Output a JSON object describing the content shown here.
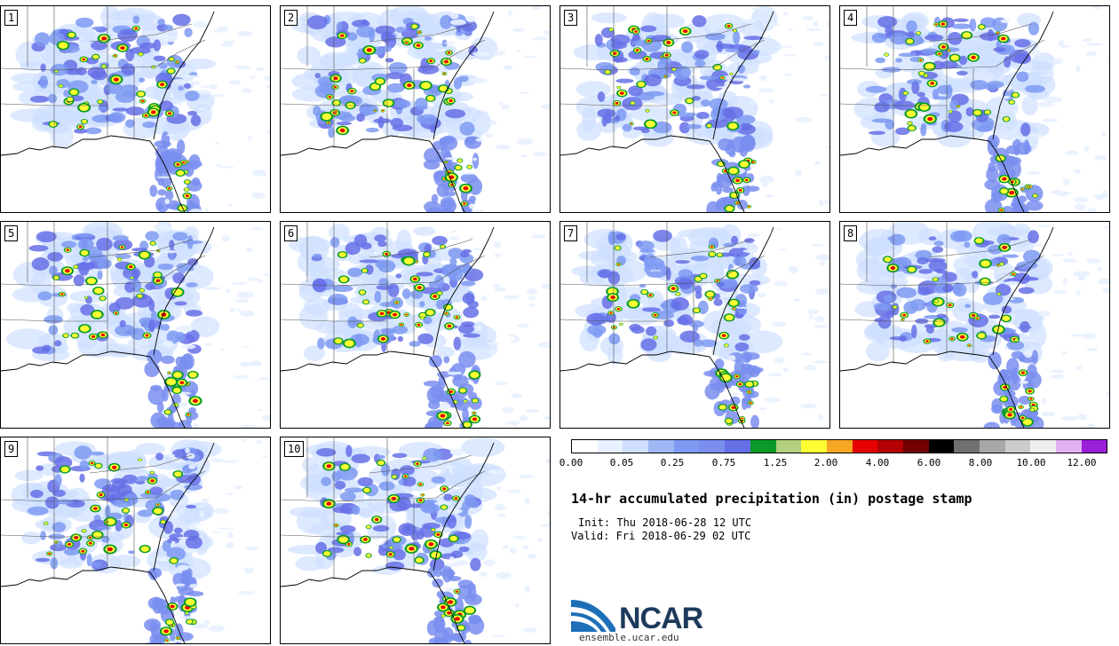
{
  "panels": [
    {
      "label": "1"
    },
    {
      "label": "2"
    },
    {
      "label": "3"
    },
    {
      "label": "4"
    },
    {
      "label": "5"
    },
    {
      "label": "6"
    },
    {
      "label": "7"
    },
    {
      "label": "8"
    },
    {
      "label": "9"
    },
    {
      "label": "10"
    }
  ],
  "colorbar": {
    "colors": [
      "#ffffff",
      "#e8f1ff",
      "#cfdfff",
      "#9fb8f5",
      "#7e9af2",
      "#7a8ef0",
      "#6670e6",
      "#0a9a2a",
      "#b2d080",
      "#ffff33",
      "#f5a623",
      "#e60000",
      "#b30000",
      "#730000",
      "#000000",
      "#707070",
      "#a8a8a8",
      "#cccccc",
      "#eeeeee",
      "#e0b0f0",
      "#9b20d9"
    ],
    "tick_labels": [
      "0.00",
      "0.05",
      "0.25",
      "0.75",
      "1.25",
      "2.00",
      "4.00",
      "6.00",
      "8.00",
      "10.00",
      "12.00"
    ]
  },
  "title": "14-hr accumulated precipitation (in) postage stamp",
  "init": "Init: Thu 2018-06-28 12 UTC",
  "valid": "Valid: Fri 2018-06-29 02 UTC",
  "logo": {
    "text": "NCAR",
    "url": "ensemble.ucar.edu"
  }
}
